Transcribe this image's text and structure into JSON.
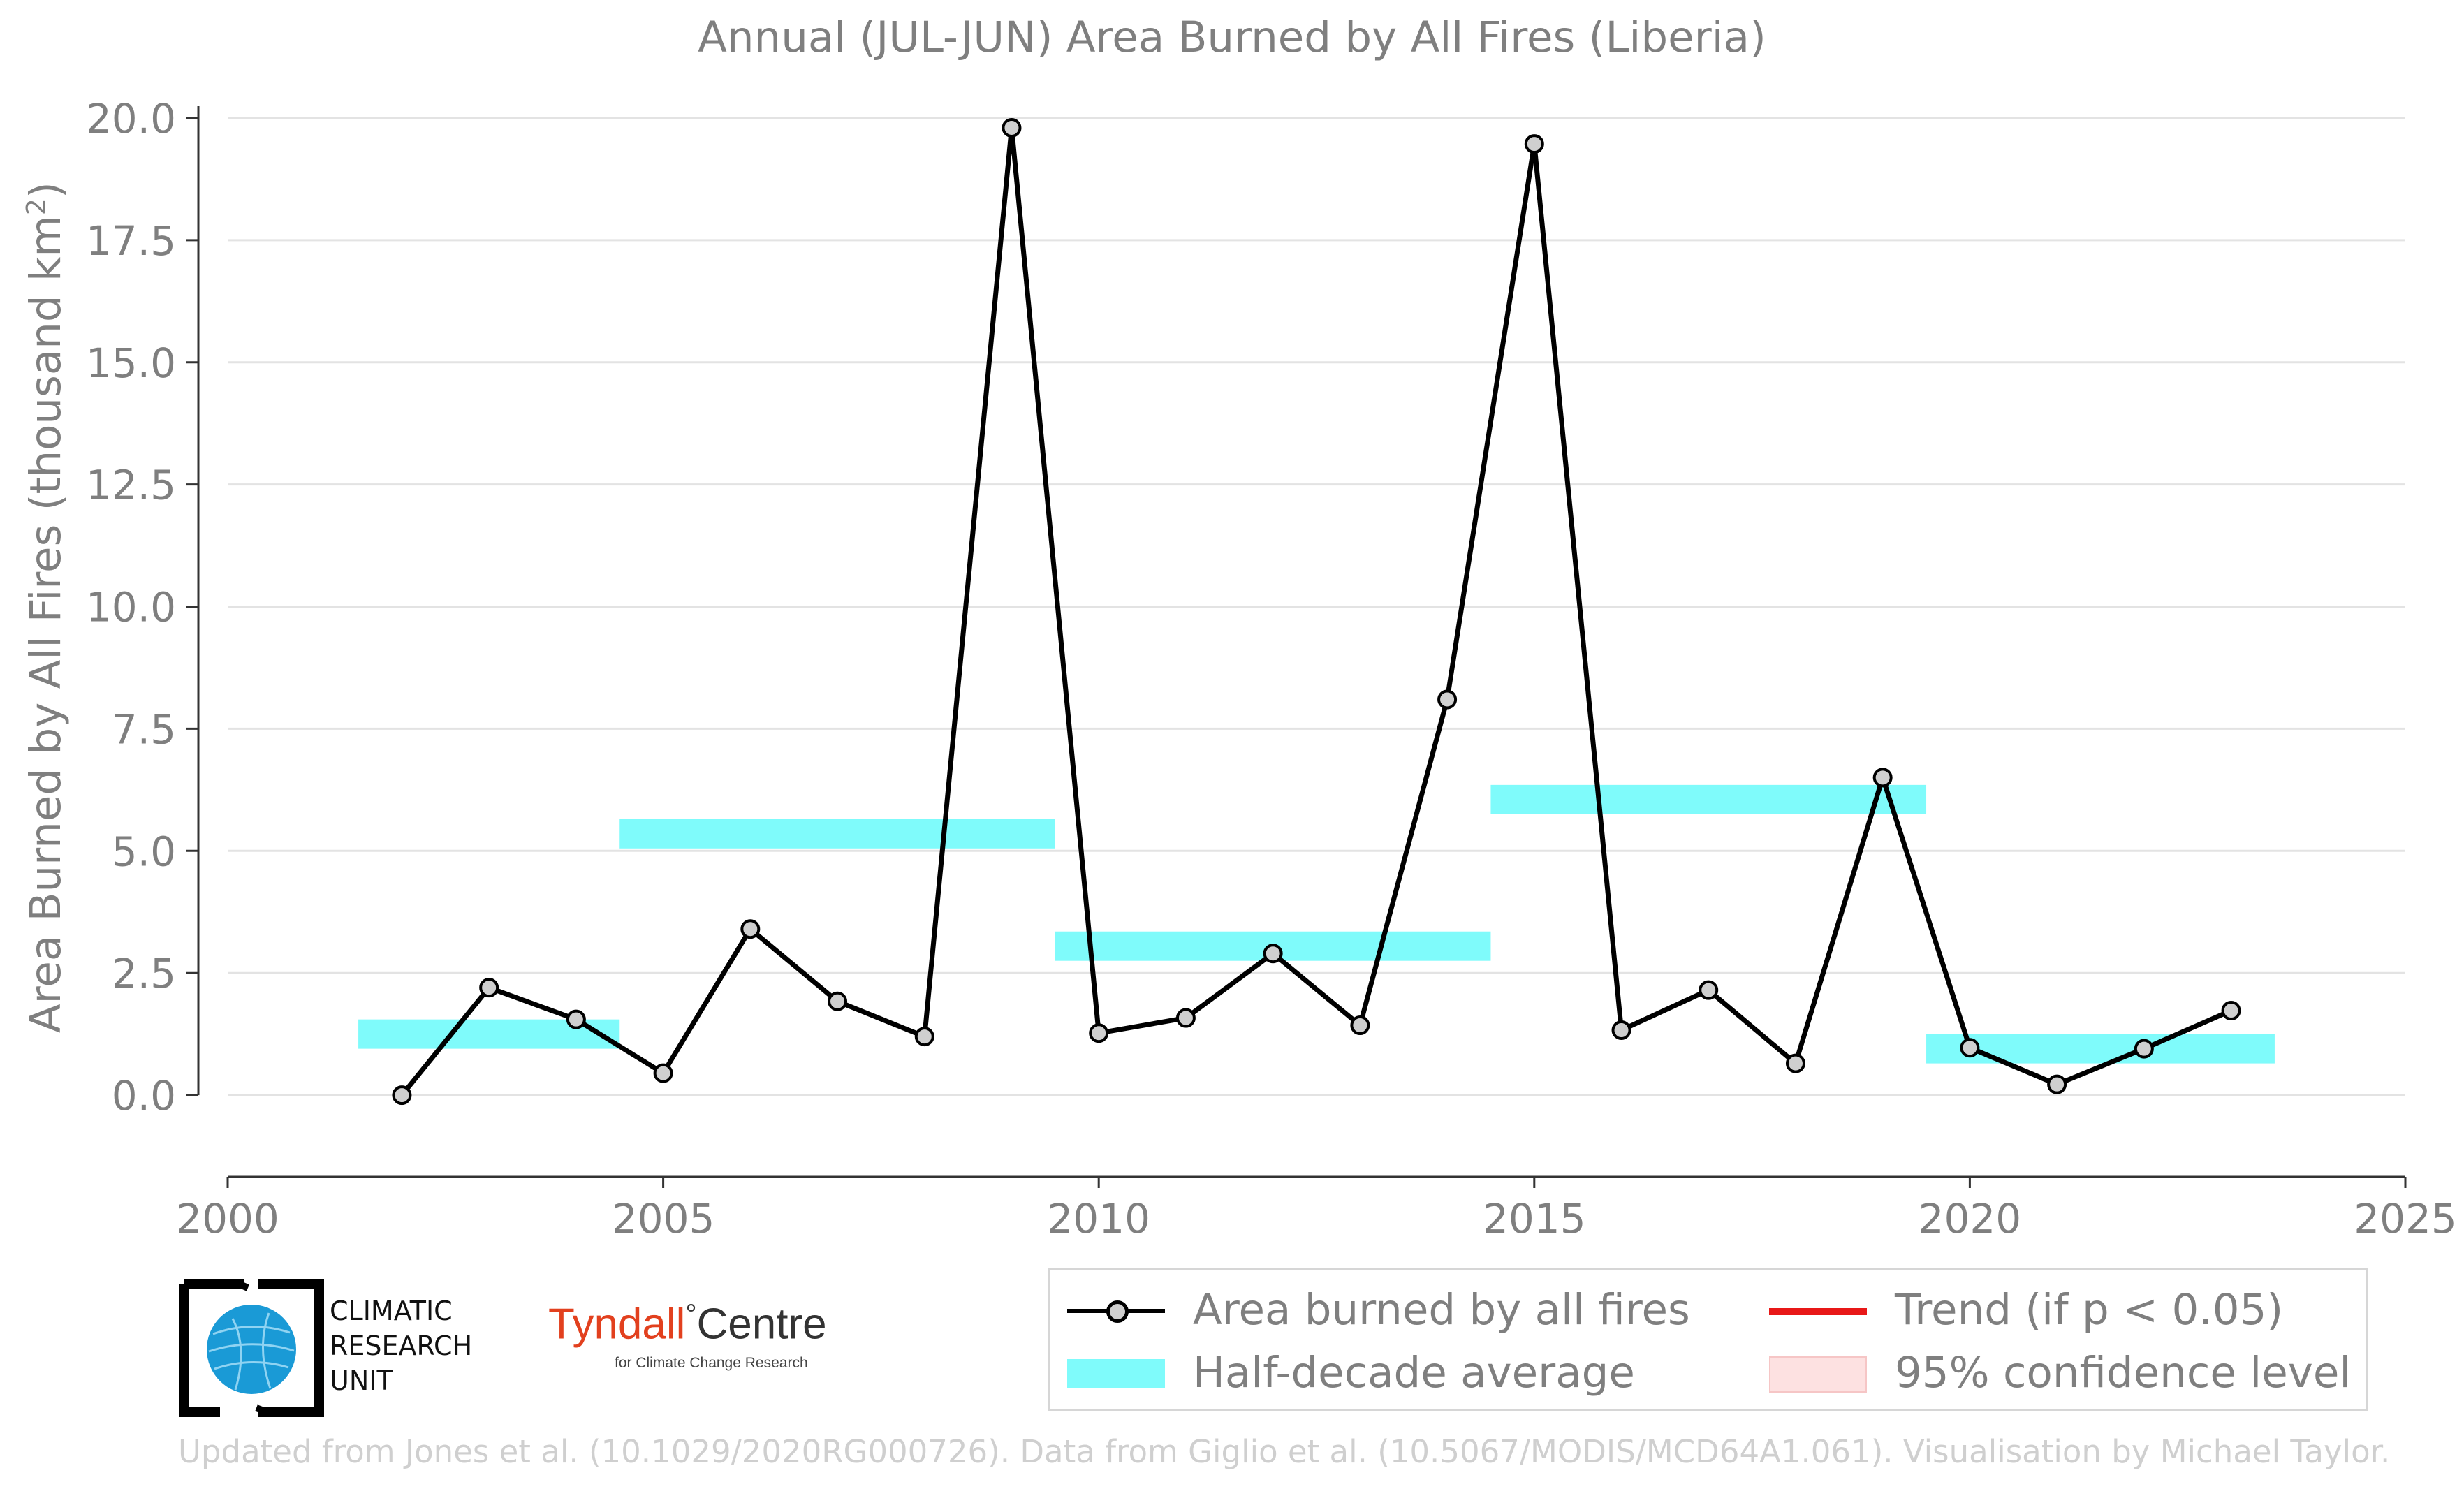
{
  "chart_data": {
    "type": "line",
    "title": "Annual (JUL-JUN) Area Burned by All Fires (Liberia)",
    "ylabel_main": "Area Burned by All Fires (thousand km",
    "ylabel_sup": "2",
    "ylabel_end": ")",
    "xlabel": "",
    "xlim": [
      2000,
      2025
    ],
    "ylim": [
      -1.6,
      20.2
    ],
    "x_ticks": [
      2000,
      2005,
      2010,
      2015,
      2020,
      2025
    ],
    "x_tick_labels": [
      "2000",
      "2005",
      "2010",
      "2015",
      "2020",
      "2025"
    ],
    "y_ticks": [
      0,
      2.5,
      5,
      7.5,
      10,
      12.5,
      15,
      17.5,
      20
    ],
    "y_tick_labels": [
      "0.0",
      "2.5",
      "5.0",
      "7.5",
      "10.0",
      "12.5",
      "15.0",
      "17.5",
      "20.0"
    ],
    "grid": "horizontal",
    "legend_position": "bottom-right",
    "series": [
      {
        "name": "Area burned by all fires",
        "color": "#000000",
        "marker_fill": "#cfcfcf",
        "x": [
          2002,
          2003,
          2004,
          2005,
          2006,
          2007,
          2008,
          2009,
          2010,
          2011,
          2012,
          2013,
          2014,
          2015,
          2016,
          2017,
          2018,
          2019,
          2020,
          2021,
          2022,
          2023
        ],
        "y": [
          0.0,
          2.2,
          1.55,
          0.45,
          3.4,
          1.92,
          1.2,
          19.8,
          1.27,
          1.58,
          2.9,
          1.43,
          8.1,
          19.47,
          1.33,
          2.15,
          0.65,
          6.5,
          0.97,
          0.22,
          0.95,
          1.73
        ]
      }
    ],
    "half_decade_averages": {
      "name": "Half-decade average",
      "color": "#7ffbfb",
      "bands": [
        {
          "x_start": 2001.5,
          "x_end": 2004.5,
          "y_low": 0.95,
          "y_high": 1.55
        },
        {
          "x_start": 2004.5,
          "x_end": 2009.5,
          "y_low": 5.05,
          "y_high": 5.65
        },
        {
          "x_start": 2009.5,
          "x_end": 2014.5,
          "y_low": 2.75,
          "y_high": 3.35
        },
        {
          "x_start": 2014.5,
          "x_end": 2019.5,
          "y_low": 5.75,
          "y_high": 6.35
        },
        {
          "x_start": 2019.5,
          "x_end": 2023.5,
          "y_low": 0.65,
          "y_high": 1.25
        }
      ]
    },
    "legend": [
      {
        "label": "Area burned by all fires",
        "kind": "line-marker",
        "color": "#000000"
      },
      {
        "label": "Half-decade average",
        "kind": "band",
        "color": "#7ffbfb"
      },
      {
        "label": "Trend (if p < 0.05)",
        "kind": "line",
        "color": "#e81818"
      },
      {
        "label": "95% confidence level",
        "kind": "band",
        "color": "#fde1e1"
      }
    ]
  },
  "logos": {
    "cru_lines": [
      "CLIMATIC",
      "RESEARCH",
      "UNIT"
    ],
    "tyndall_name": "Tyndall",
    "tyndall_degree": "°",
    "tyndall_centre": "Centre",
    "tyndall_sub": "for Climate Change Research"
  },
  "footer": "Updated from Jones et al. (10.1029/2020RG000726). Data from Giglio et al. (10.5067/MODIS/MCD64A1.061). Visualisation by Michael Taylor."
}
